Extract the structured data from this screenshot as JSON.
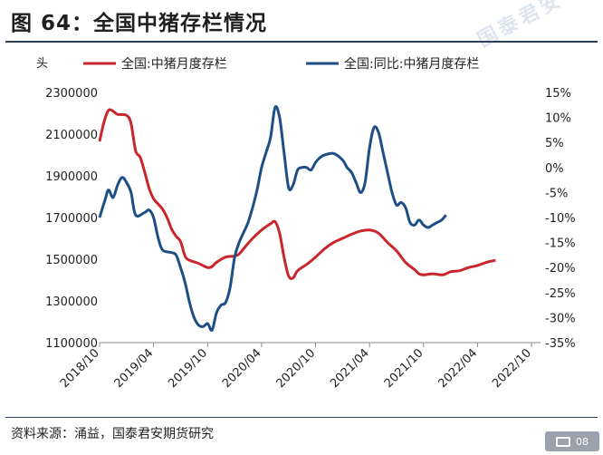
{
  "title": "图 64：全国中猪存栏情况",
  "watermark": "国泰君安",
  "source": "资料来源：涌益，国泰君安期货研究",
  "badge": {
    "icon": "camera-icon",
    "text": "08"
  },
  "colors": {
    "series_red": "#c8262c",
    "series_blue": "#1e4e86",
    "rule": "#2b3f5c"
  },
  "chart_data": {
    "type": "line",
    "y_unit_label": "头",
    "x_tick_labels": [
      "2018/10",
      "2019/04",
      "2019/10",
      "2020/04",
      "2020/10",
      "2021/04",
      "2021/10",
      "2022/04",
      "2022/10"
    ],
    "x_range": [
      0,
      49
    ],
    "left_axis": {
      "range": [
        1100000,
        2300000
      ],
      "ticks": [
        1100000,
        1300000,
        1500000,
        1700000,
        1900000,
        2100000,
        2300000
      ],
      "tick_labels": [
        "1100000",
        "1300000",
        "1500000",
        "1700000",
        "1900000",
        "2100000",
        "2300000"
      ]
    },
    "right_axis": {
      "range": [
        -35,
        15
      ],
      "ticks": [
        -35,
        -30,
        -25,
        -20,
        -15,
        -10,
        -5,
        0,
        5,
        10,
        15
      ],
      "tick_labels": [
        "-35%",
        "-30%",
        "-25%",
        "-20%",
        "-15%",
        "-10%",
        "-5%",
        "0%",
        "5%",
        "10%",
        "15%"
      ]
    },
    "series": [
      {
        "name": "全国:中猪月度存栏",
        "axis": "left",
        "color": "#c8262c",
        "points": [
          [
            0,
            2065000
          ],
          [
            0.5,
            2160000
          ],
          [
            1,
            2215000
          ],
          [
            1.5,
            2210000
          ],
          [
            2,
            2195000
          ],
          [
            3,
            2190000
          ],
          [
            3.5,
            2150000
          ],
          [
            4,
            2020000
          ],
          [
            4.5,
            1990000
          ],
          [
            5,
            1920000
          ],
          [
            5.5,
            1840000
          ],
          [
            6,
            1790000
          ],
          [
            6.5,
            1765000
          ],
          [
            7,
            1740000
          ],
          [
            7.5,
            1700000
          ],
          [
            8,
            1645000
          ],
          [
            8.5,
            1610000
          ],
          [
            9,
            1585000
          ],
          [
            9.5,
            1515000
          ],
          [
            10,
            1495000
          ],
          [
            11,
            1480000
          ],
          [
            12,
            1460000
          ],
          [
            12.5,
            1465000
          ],
          [
            13,
            1485000
          ],
          [
            14,
            1510000
          ],
          [
            15,
            1515000
          ],
          [
            15.5,
            1525000
          ],
          [
            16,
            1550000
          ],
          [
            17,
            1600000
          ],
          [
            18,
            1640000
          ],
          [
            19,
            1670000
          ],
          [
            19.5,
            1680000
          ],
          [
            20,
            1625000
          ],
          [
            20.5,
            1510000
          ],
          [
            21,
            1420000
          ],
          [
            21.5,
            1410000
          ],
          [
            22,
            1445000
          ],
          [
            23,
            1475000
          ],
          [
            24,
            1510000
          ],
          [
            25,
            1550000
          ],
          [
            26,
            1580000
          ],
          [
            27,
            1600000
          ],
          [
            28,
            1620000
          ],
          [
            29,
            1635000
          ],
          [
            30,
            1640000
          ],
          [
            31,
            1625000
          ],
          [
            32,
            1580000
          ],
          [
            33,
            1540000
          ],
          [
            34,
            1485000
          ],
          [
            35,
            1450000
          ],
          [
            35.5,
            1430000
          ],
          [
            36,
            1425000
          ],
          [
            37,
            1430000
          ],
          [
            38,
            1425000
          ],
          [
            38.5,
            1430000
          ],
          [
            39,
            1440000
          ],
          [
            40,
            1445000
          ],
          [
            41,
            1460000
          ],
          [
            42,
            1470000
          ],
          [
            43,
            1485000
          ],
          [
            44,
            1495000
          ]
        ]
      },
      {
        "name": "全国:同比:中猪月度存栏",
        "axis": "right",
        "color": "#1e4e86",
        "points": [
          [
            0,
            -10
          ],
          [
            0.6,
            -6.5
          ],
          [
            1,
            -4.5
          ],
          [
            1.5,
            -6
          ],
          [
            2,
            -3.5
          ],
          [
            2.5,
            -2
          ],
          [
            3,
            -3
          ],
          [
            3.5,
            -5
          ],
          [
            4,
            -9.5
          ],
          [
            5,
            -9
          ],
          [
            5.5,
            -8.5
          ],
          [
            6,
            -10
          ],
          [
            6.5,
            -14
          ],
          [
            7,
            -16.5
          ],
          [
            8,
            -17
          ],
          [
            8.5,
            -17.5
          ],
          [
            9,
            -20
          ],
          [
            9.5,
            -23
          ],
          [
            10,
            -27
          ],
          [
            10.5,
            -30
          ],
          [
            11,
            -31.5
          ],
          [
            11.5,
            -31.8
          ],
          [
            12,
            -31.2
          ],
          [
            12.5,
            -32.5
          ],
          [
            13,
            -29
          ],
          [
            13.5,
            -27.5
          ],
          [
            14,
            -27
          ],
          [
            14.5,
            -24
          ],
          [
            15,
            -18
          ],
          [
            15.5,
            -15
          ],
          [
            16,
            -13
          ],
          [
            16.5,
            -11
          ],
          [
            17,
            -8
          ],
          [
            17.5,
            -4.5
          ],
          [
            18,
            0
          ],
          [
            18.5,
            3
          ],
          [
            19,
            6
          ],
          [
            19.5,
            12
          ],
          [
            20,
            10
          ],
          [
            20.5,
            3
          ],
          [
            21,
            -4
          ],
          [
            21.5,
            -3.5
          ],
          [
            22,
            -0.5
          ],
          [
            22.5,
            0
          ],
          [
            23,
            0
          ],
          [
            23.5,
            -0.5
          ],
          [
            24,
            1
          ],
          [
            24.5,
            2
          ],
          [
            25,
            2.5
          ],
          [
            26,
            2.8
          ],
          [
            27,
            1.5
          ],
          [
            27.5,
            0
          ],
          [
            28,
            -1
          ],
          [
            28.5,
            -3
          ],
          [
            29,
            -5
          ],
          [
            29.5,
            -3
          ],
          [
            30,
            4
          ],
          [
            30.5,
            8
          ],
          [
            31,
            7
          ],
          [
            31.5,
            3
          ],
          [
            32,
            -1
          ],
          [
            32.5,
            -5
          ],
          [
            33,
            -7.5
          ],
          [
            33.5,
            -7
          ],
          [
            34,
            -8
          ],
          [
            34.5,
            -11
          ],
          [
            35,
            -11.5
          ],
          [
            35.5,
            -10.5
          ],
          [
            36,
            -11.5
          ],
          [
            36.5,
            -12
          ],
          [
            37,
            -11.5
          ],
          [
            37.5,
            -11
          ],
          [
            38,
            -10.5
          ],
          [
            38.5,
            -9.5
          ]
        ]
      }
    ]
  }
}
